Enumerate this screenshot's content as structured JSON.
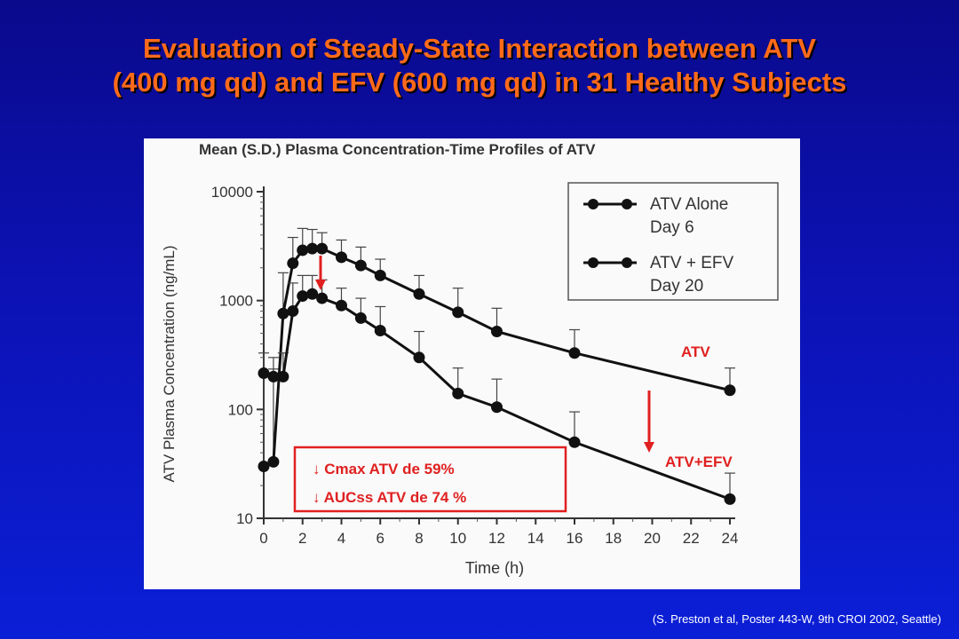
{
  "slide": {
    "title_line1": "Evaluation of Steady-State Interaction between ATV",
    "title_line2": "(400 mg qd) and EFV (600 mg qd) in 31 Healthy Subjects",
    "citation": "(S. Preston et al, Poster 443-W, 9th CROI 2002, Seattle)"
  },
  "chart_data": {
    "type": "line",
    "title": "Mean (S.D.) Plasma Concentration-Time Profiles of ATV",
    "xlabel": "Time (h)",
    "ylabel": "ATV Plasma Concentration (ng/mL)",
    "xlim": [
      0,
      24
    ],
    "ylim": [
      10,
      10000
    ],
    "yscale": "log",
    "x_ticks": [
      0,
      2,
      4,
      6,
      8,
      10,
      12,
      14,
      16,
      18,
      20,
      22,
      24
    ],
    "y_ticks": [
      10,
      100,
      1000,
      10000
    ],
    "legend_position": "top-right",
    "series": [
      {
        "name": "ATV Alone\nDay 6",
        "color": "#111111",
        "x": [
          0,
          0.5,
          1,
          1.5,
          2,
          2.5,
          3,
          4,
          5,
          6,
          8,
          10,
          12,
          16,
          24
        ],
        "y": [
          30,
          33,
          760,
          2200,
          2900,
          3000,
          3000,
          2500,
          2100,
          1700,
          1150,
          780,
          520,
          330,
          150
        ],
        "sd_upper": [
          215,
          235,
          1800,
          3800,
          4600,
          4500,
          4200,
          3600,
          3100,
          2400,
          1700,
          1300,
          850,
          540,
          240
        ]
      },
      {
        "name": "ATV + EFV\nDay 20",
        "color": "#111111",
        "x": [
          0,
          0.5,
          1,
          1.5,
          2,
          2.5,
          3,
          4,
          5,
          6,
          8,
          10,
          12,
          16,
          24
        ],
        "y": [
          215,
          200,
          200,
          800,
          1100,
          1150,
          1050,
          900,
          690,
          530,
          300,
          140,
          105,
          50,
          15
        ],
        "sd_upper": [
          330,
          300,
          330,
          1450,
          1700,
          1700,
          1550,
          1300,
          1050,
          880,
          520,
          240,
          190,
          95,
          26
        ]
      }
    ],
    "annotations": {
      "label_atv": "ATV",
      "label_atv_efv": "ATV+EFV",
      "box_line1": "Cmax ATV de 59%",
      "box_line2": "AUCss ATV de 74 %",
      "box_arrow_glyph": "↓",
      "accent_color": "#e02020"
    }
  }
}
